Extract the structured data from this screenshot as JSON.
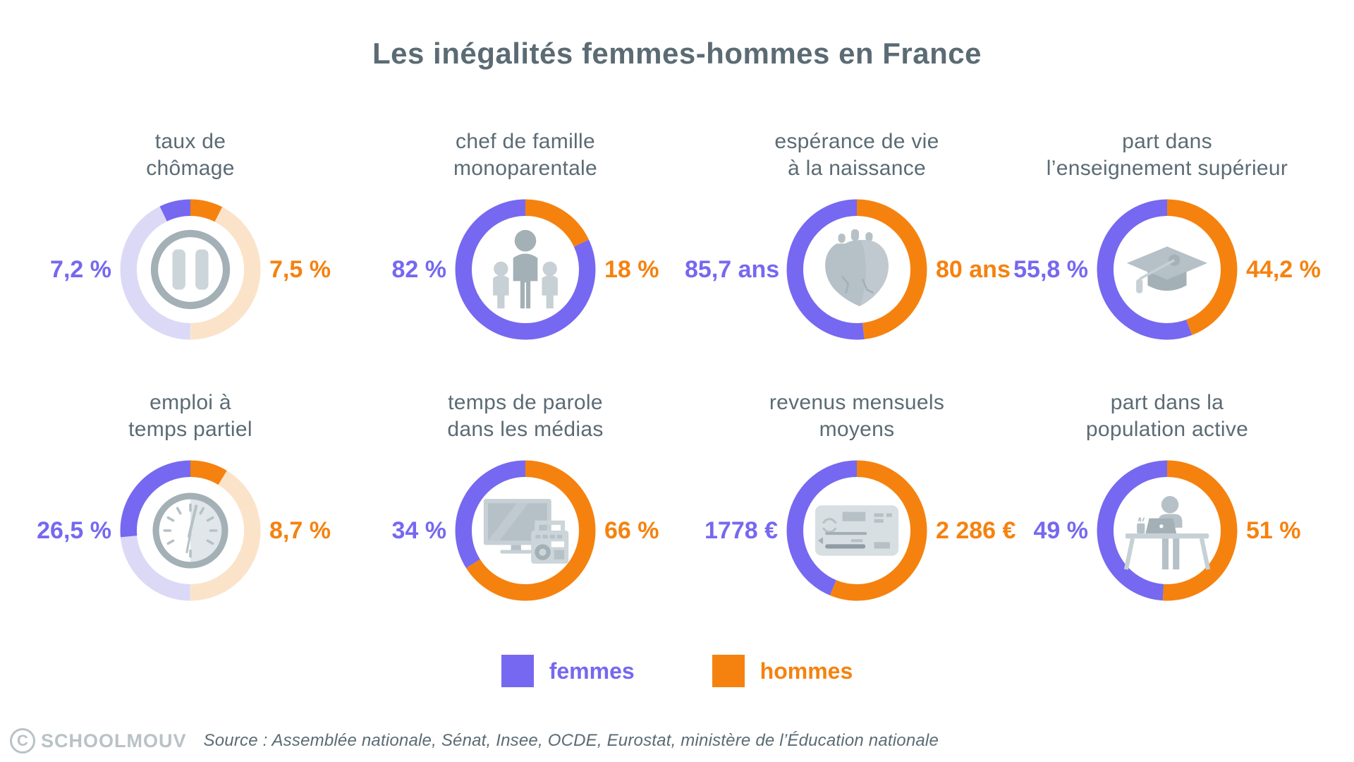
{
  "title": "Les inégalités femmes-hommes en France",
  "colors": {
    "femmes": "#7668f0",
    "hommes": "#f5820f",
    "femmes_pale": "#dcd9f7",
    "hommes_pale": "#fbe3ca",
    "title_text": "#5b6b74",
    "icon_gray": "#a3b0b6",
    "icon_gray_light": "#ccd5d9"
  },
  "chart_data": [
    {
      "type": "donut",
      "title": "taux de chômage",
      "title_line1": "taux de",
      "title_line2": "chômage",
      "icon": "pause-icon",
      "arc_scale": "percent-of-circle",
      "femmes": {
        "value": 7.2,
        "label": "7,2 %"
      },
      "hommes": {
        "value": 7.5,
        "label": "7,5 %"
      },
      "unit": "%"
    },
    {
      "type": "donut",
      "title": "chef de famille monoparentale",
      "title_line1": "chef de famille",
      "title_line2": "monoparentale",
      "icon": "family-icon",
      "arc_scale": "normalized",
      "femmes": {
        "value": 82,
        "label": "82 %"
      },
      "hommes": {
        "value": 18,
        "label": "18 %"
      },
      "unit": "%"
    },
    {
      "type": "donut",
      "title": "espérance de vie à la naissance",
      "title_line1": "espérance de vie",
      "title_line2": "à la naissance",
      "icon": "heart-icon",
      "arc_scale": "normalized",
      "femmes": {
        "value": 85.7,
        "label": "85,7 ans"
      },
      "hommes": {
        "value": 80,
        "label": "80 ans"
      },
      "unit": "ans"
    },
    {
      "type": "donut",
      "title": "part dans l’enseignement supérieur",
      "title_line1": "part dans",
      "title_line2": "l’enseignement supérieur",
      "icon": "graduation-cap-icon",
      "arc_scale": "normalized",
      "femmes": {
        "value": 55.8,
        "label": "55,8 %"
      },
      "hommes": {
        "value": 44.2,
        "label": "44,2 %"
      },
      "unit": "%"
    },
    {
      "type": "donut",
      "title": "emploi à temps partiel",
      "title_line1": "emploi à",
      "title_line2": "temps partiel",
      "icon": "clock-icon",
      "arc_scale": "percent-of-circle",
      "femmes": {
        "value": 26.5,
        "label": "26,5 %"
      },
      "hommes": {
        "value": 8.7,
        "label": "8,7 %"
      },
      "unit": "%"
    },
    {
      "type": "donut",
      "title": "temps de parole dans les médias",
      "title_line1": "temps de parole",
      "title_line2": "dans les médias",
      "icon": "tv-radio-icon",
      "arc_scale": "normalized",
      "femmes": {
        "value": 34,
        "label": "34 %"
      },
      "hommes": {
        "value": 66,
        "label": "66 %"
      },
      "unit": "%"
    },
    {
      "type": "donut",
      "title": "revenus mensuels moyens",
      "title_line1": "revenus mensuels",
      "title_line2": "moyens",
      "icon": "payslip-icon",
      "arc_scale": "normalized",
      "femmes": {
        "value": 1778,
        "label": "1778 €"
      },
      "hommes": {
        "value": 2286,
        "label": "2 286 €"
      },
      "unit": "€"
    },
    {
      "type": "donut",
      "title": "part dans la population active",
      "title_line1": "part dans la",
      "title_line2": "population active",
      "icon": "worker-desk-icon",
      "arc_scale": "normalized",
      "femmes": {
        "value": 49,
        "label": "49 %"
      },
      "hommes": {
        "value": 51,
        "label": "51 %"
      },
      "unit": "%"
    }
  ],
  "legend": {
    "items": [
      {
        "key": "femmes",
        "label": "femmes",
        "color": "#7668f0"
      },
      {
        "key": "hommes",
        "label": "hommes",
        "color": "#f5820f"
      }
    ]
  },
  "footer": {
    "logo": "SCHOOLMOUV",
    "copyright_glyph": "C",
    "source": "Source : Assemblée nationale, Sénat, Insee, OCDE, Eurostat, ministère de l’Éducation nationale"
  }
}
